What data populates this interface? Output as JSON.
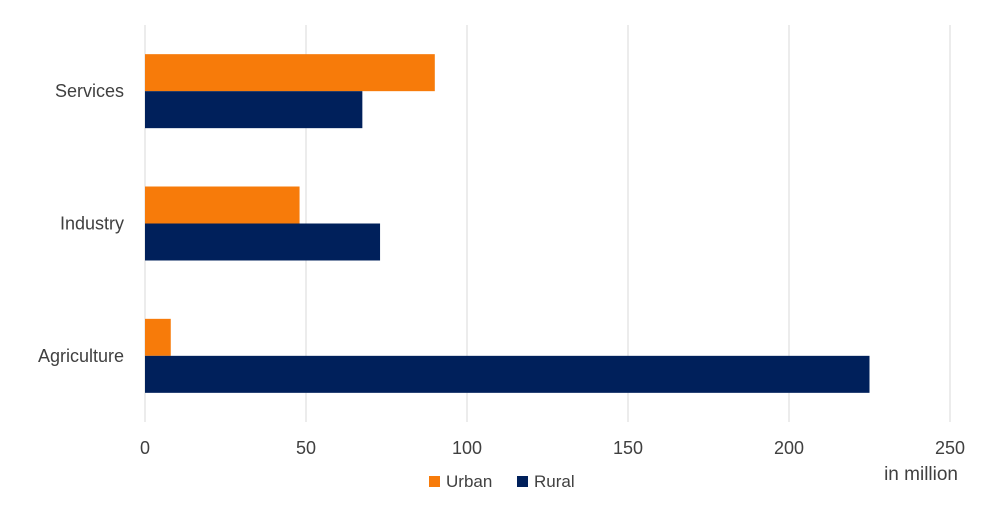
{
  "chart_data": {
    "type": "bar",
    "orientation": "horizontal",
    "categories": [
      "Services",
      "Industry",
      "Agriculture"
    ],
    "series": [
      {
        "name": "Urban",
        "values": [
          90,
          48,
          8
        ],
        "color": "#F77B0A"
      },
      {
        "name": "Rural",
        "values": [
          67.5,
          73,
          225
        ],
        "color": "#00205B"
      }
    ],
    "xlim": [
      0,
      250
    ],
    "xticks": [
      "0",
      "50",
      "100",
      "150",
      "200",
      "250"
    ],
    "xlabel": "in million",
    "grid": "vertical",
    "legend_position": "bottom"
  }
}
